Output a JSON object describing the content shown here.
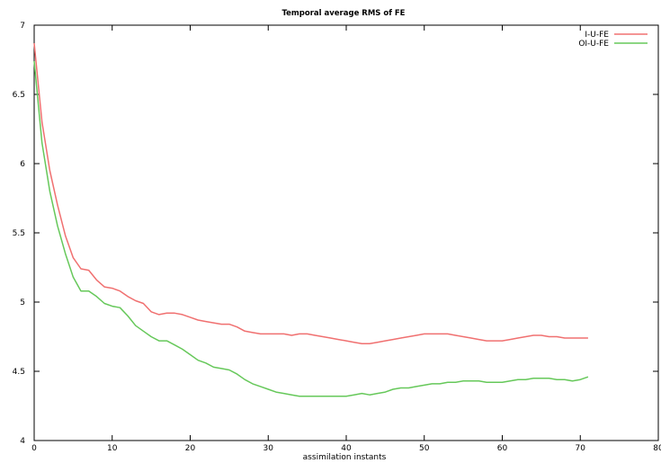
{
  "chart_data": {
    "type": "line",
    "title": "Temporal average RMS of FE",
    "xlabel": "assimilation instants",
    "ylabel": "",
    "xlim": [
      0,
      80
    ],
    "ylim": [
      4,
      7
    ],
    "xticks": [
      "0",
      "10",
      "20",
      "30",
      "40",
      "50",
      "60",
      "70",
      "80"
    ],
    "yticks": [
      "4",
      "4.5",
      "5",
      "5.5",
      "6",
      "6.5",
      "7"
    ],
    "grid": false,
    "legend_position": "top-right",
    "series": [
      {
        "name": "I-U-FE",
        "color": "#f07070",
        "x": [
          0,
          1,
          2,
          3,
          4,
          5,
          6,
          7,
          8,
          9,
          10,
          11,
          12,
          13,
          14,
          15,
          16,
          17,
          18,
          19,
          20,
          21,
          22,
          23,
          24,
          25,
          26,
          27,
          28,
          29,
          30,
          31,
          32,
          33,
          34,
          35,
          36,
          37,
          38,
          39,
          40,
          41,
          42,
          43,
          44,
          45,
          46,
          47,
          48,
          49,
          50,
          51,
          52,
          53,
          54,
          55,
          56,
          57,
          58,
          59,
          60,
          61,
          62,
          63,
          64,
          65,
          66,
          67,
          68,
          69,
          70,
          71
        ],
        "values": [
          6.87,
          6.3,
          5.95,
          5.7,
          5.48,
          5.32,
          5.24,
          5.23,
          5.16,
          5.11,
          5.1,
          5.08,
          5.04,
          5.01,
          4.99,
          4.93,
          4.91,
          4.92,
          4.92,
          4.91,
          4.89,
          4.87,
          4.86,
          4.85,
          4.84,
          4.84,
          4.82,
          4.79,
          4.78,
          4.77,
          4.77,
          4.77,
          4.77,
          4.76,
          4.77,
          4.77,
          4.76,
          4.75,
          4.74,
          4.73,
          4.72,
          4.71,
          4.7,
          4.7,
          4.71,
          4.72,
          4.73,
          4.74,
          4.75,
          4.76,
          4.77,
          4.77,
          4.77,
          4.77,
          4.76,
          4.75,
          4.74,
          4.73,
          4.72,
          4.72,
          4.72,
          4.73,
          4.74,
          4.75,
          4.76,
          4.76,
          4.75,
          4.75,
          4.74,
          4.74,
          4.74,
          4.74
        ]
      },
      {
        "name": "OI-U-FE",
        "color": "#66c85a",
        "x": [
          0,
          1,
          2,
          3,
          4,
          5,
          6,
          7,
          8,
          9,
          10,
          11,
          12,
          13,
          14,
          15,
          16,
          17,
          18,
          19,
          20,
          21,
          22,
          23,
          24,
          25,
          26,
          27,
          28,
          29,
          30,
          31,
          32,
          33,
          34,
          35,
          36,
          37,
          38,
          39,
          40,
          41,
          42,
          43,
          44,
          45,
          46,
          47,
          48,
          49,
          50,
          51,
          52,
          53,
          54,
          55,
          56,
          57,
          58,
          59,
          60,
          61,
          62,
          63,
          64,
          65,
          66,
          67,
          68,
          69,
          70,
          71
        ],
        "values": [
          6.74,
          6.15,
          5.8,
          5.55,
          5.35,
          5.18,
          5.08,
          5.08,
          5.04,
          4.99,
          4.97,
          4.96,
          4.9,
          4.83,
          4.79,
          4.75,
          4.72,
          4.72,
          4.69,
          4.66,
          4.62,
          4.58,
          4.56,
          4.53,
          4.52,
          4.51,
          4.48,
          4.44,
          4.41,
          4.39,
          4.37,
          4.35,
          4.34,
          4.33,
          4.32,
          4.32,
          4.32,
          4.32,
          4.32,
          4.32,
          4.32,
          4.33,
          4.34,
          4.33,
          4.34,
          4.35,
          4.37,
          4.38,
          4.38,
          4.39,
          4.4,
          4.41,
          4.41,
          4.42,
          4.42,
          4.43,
          4.43,
          4.43,
          4.42,
          4.42,
          4.42,
          4.43,
          4.44,
          4.44,
          4.45,
          4.45,
          4.45,
          4.44,
          4.44,
          4.43,
          4.44,
          4.46
        ]
      }
    ]
  }
}
